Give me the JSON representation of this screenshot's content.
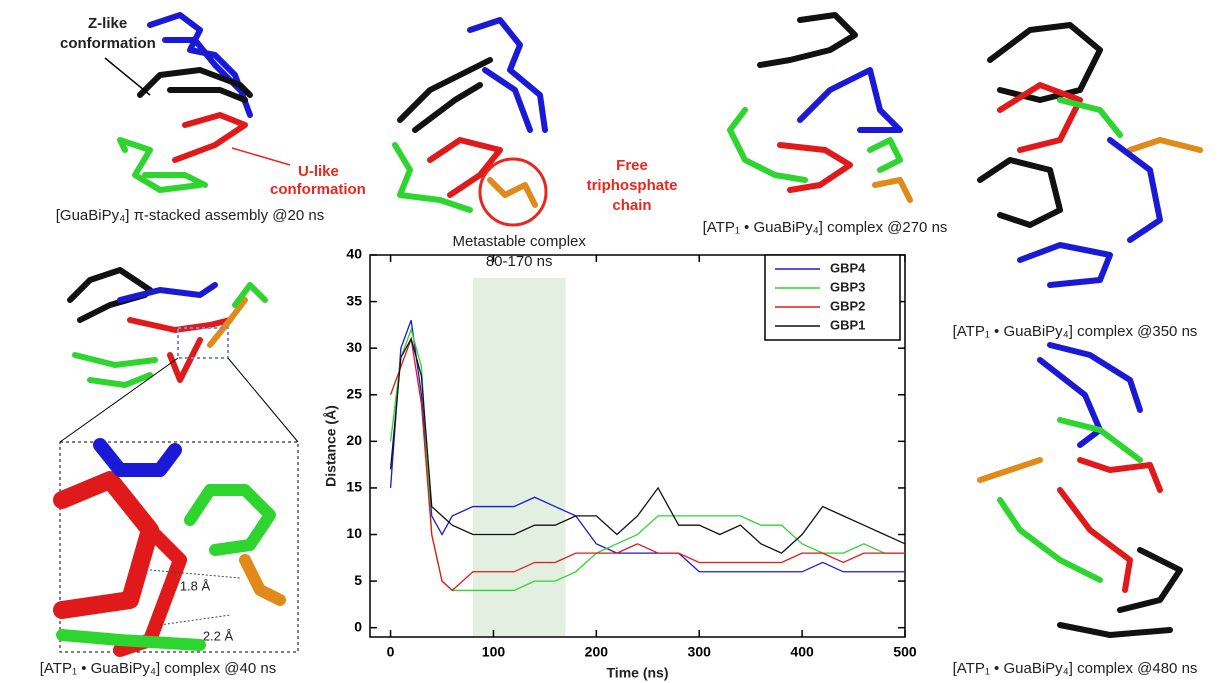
{
  "chart_data": {
    "type": "line",
    "x": [
      0,
      10,
      20,
      30,
      40,
      50,
      60,
      80,
      100,
      120,
      140,
      160,
      180,
      200,
      220,
      240,
      260,
      280,
      300,
      320,
      340,
      360,
      380,
      400,
      420,
      440,
      460,
      480,
      500
    ],
    "series": [
      {
        "name": "GBP4",
        "color": "#1a1ad6",
        "values": [
          15,
          30,
          33,
          25,
          12,
          10,
          12,
          13,
          13,
          13,
          14,
          13,
          12,
          9,
          8,
          8,
          8,
          8,
          6,
          6,
          6,
          6,
          6,
          6,
          7,
          6,
          6,
          6,
          6
        ]
      },
      {
        "name": "GBP3",
        "color": "#2fd52f",
        "values": [
          20,
          29,
          32,
          28,
          10,
          5,
          4,
          4,
          4,
          4,
          5,
          5,
          6,
          8,
          9,
          10,
          12,
          12,
          12,
          12,
          12,
          11,
          11,
          9,
          8,
          8,
          9,
          8,
          8
        ]
      },
      {
        "name": "GBP2",
        "color": "#e01a1a",
        "values": [
          25,
          28,
          31,
          24,
          10,
          5,
          4,
          6,
          6,
          6,
          7,
          7,
          8,
          8,
          8,
          9,
          8,
          8,
          7,
          7,
          7,
          7,
          7,
          8,
          8,
          7,
          8,
          8,
          8
        ]
      },
      {
        "name": "GBP1",
        "color": "#111111",
        "values": [
          17,
          29,
          31,
          27,
          13,
          12,
          11,
          10,
          10,
          10,
          11,
          11,
          12,
          12,
          10,
          12,
          15,
          11,
          11,
          10,
          11,
          9,
          8,
          10,
          13,
          12,
          11,
          10,
          9
        ]
      }
    ],
    "xlabel": "Time (ns)",
    "ylabel": "Distance (Å)",
    "xlim": [
      -20,
      500
    ],
    "xticks": [
      0,
      100,
      200,
      300,
      400,
      500
    ],
    "ylim": [
      -1,
      40
    ],
    "yticks": [
      0,
      5,
      10,
      15,
      20,
      25,
      30,
      35,
      40
    ],
    "highlight": {
      "range": [
        80,
        170
      ],
      "color": "#e3efe0",
      "label": [
        "Metastable complex",
        "80-170 ns"
      ]
    }
  },
  "figure": {
    "captions": [
      "[GuaBiPy₄] π-stacked assembly @20 ns",
      "[ATP₁ • GuaBiPy₄] complex @270 ns",
      "[ATP₁ • GuaBiPy₄] complex @350 ns",
      "[ATP₁ • GuaBiPy₄] complex @40 ns",
      "[ATP₁ • GuaBiPy₄] complex @480 ns"
    ],
    "z_like": [
      "Z-like",
      "conformation"
    ],
    "u_like": [
      "U-like",
      "conformation"
    ],
    "free_chain": [
      "Free",
      "triphosphate",
      "chain"
    ],
    "distances": [
      "1.8 Å",
      "2.2 Å"
    ]
  }
}
